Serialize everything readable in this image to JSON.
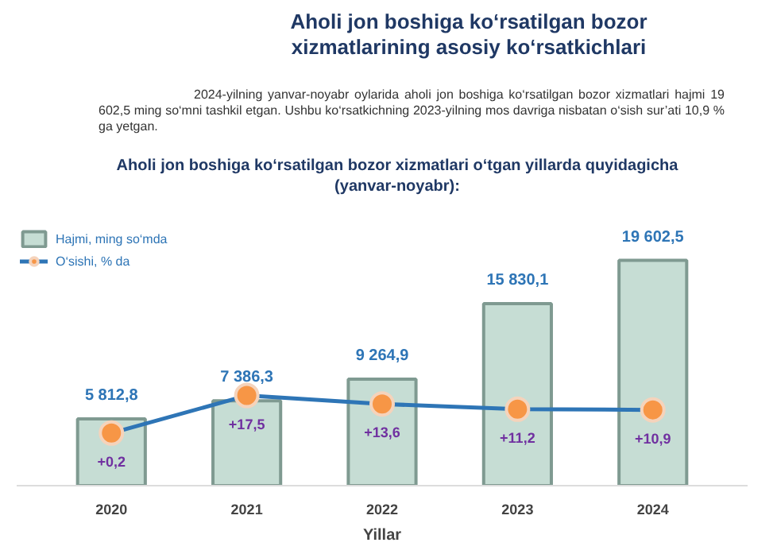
{
  "chart_data": {
    "type": "bar",
    "title": "Aholi jon boshiga ko‘rsatilgan bozor\nxizmatlarining asosiy ko‘rsatkichlari",
    "annotations": [
      "2024-yilning yanvar-noyabr oylarida aholi jon boshiga ko‘rsatilgan bozor xizmatlari hajmi 19 602,5 ming so‘mni tashkil etgan. Ushbu ko‘rsatkichning 2023-yilning mos davriga nisbatan o‘sish sur’ati 10,9 % ga yetgan."
    ],
    "subtitle": "Aholi jon boshiga ko‘rsatilgan bozor xizmatlari o‘tgan yillarda quyidagicha\n(yanvar-noyabr):",
    "xlabel": "Yillar",
    "categories": [
      "2020",
      "2021",
      "2022",
      "2023",
      "2024"
    ],
    "tick_labels": "x",
    "grid": false,
    "legend": "top left",
    "marker": "circle",
    "series": [
      {
        "name": "Hajmi, ming so‘mda",
        "color": "#c6ddd4",
        "values": [
          5812.8,
          7386.3,
          9264.9,
          15830.1,
          19602.5
        ],
        "value_labels": [
          "5 812,8",
          "7 386,3",
          "9 264,9",
          "15 830,1",
          "19 602,5"
        ]
      },
      {
        "name": "O‘sishi, % da",
        "type": "line",
        "axis": "y2",
        "color": "#2e75b6",
        "values": [
          0.2,
          17.5,
          13.6,
          11.2,
          10.9
        ],
        "value_labels": [
          "+0,2",
          "+17,5",
          "+13,6",
          "+11,2",
          "+10,9"
        ]
      }
    ]
  }
}
